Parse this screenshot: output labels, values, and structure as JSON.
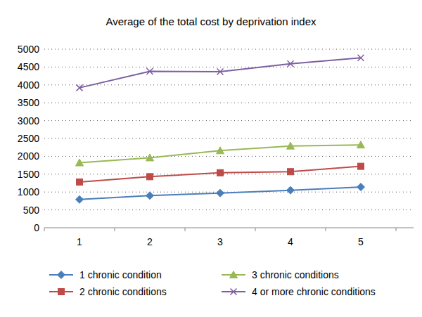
{
  "chart_data": {
    "type": "line",
    "title": "Average of the total cost by deprivation index",
    "categories": [
      "1",
      "2",
      "3",
      "4",
      "5"
    ],
    "series": [
      {
        "name": "1 chronic condition",
        "color": "#4a7ebb",
        "marker": "diamond",
        "values": [
          790,
          900,
          970,
          1050,
          1140
        ]
      },
      {
        "name": "2 chronic conditions",
        "color": "#be4b48",
        "marker": "square",
        "values": [
          1280,
          1430,
          1540,
          1570,
          1720
        ]
      },
      {
        "name": "3 chronic conditions",
        "color": "#98b954",
        "marker": "triangle",
        "values": [
          1820,
          1960,
          2160,
          2290,
          2320
        ]
      },
      {
        "name": "4 or more chronic conditions",
        "color": "#7d5fa0",
        "marker": "x",
        "values": [
          3920,
          4380,
          4370,
          4590,
          4760
        ]
      }
    ],
    "ylim": [
      0,
      5000
    ],
    "yticks": [
      0,
      500,
      1000,
      1500,
      2000,
      2500,
      3000,
      3500,
      4000,
      4500,
      5000
    ],
    "grid": true,
    "legend": "bottom"
  }
}
